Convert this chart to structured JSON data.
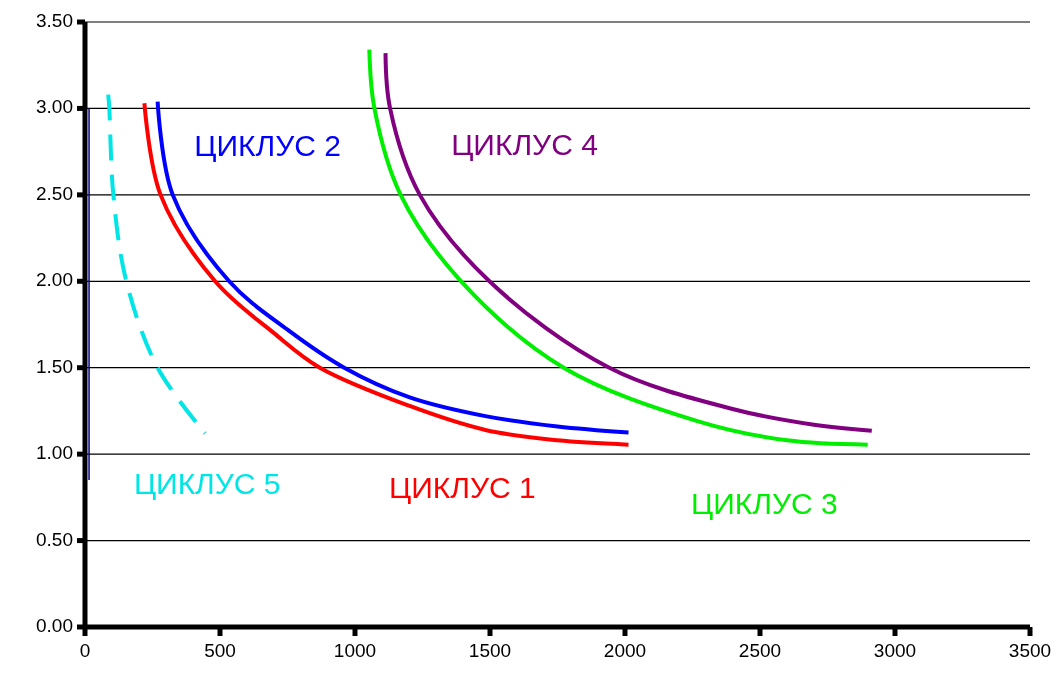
{
  "chart_data": {
    "type": "line",
    "xlim": [
      0,
      3500
    ],
    "xticks": [
      0,
      500,
      1000,
      1500,
      2000,
      2500,
      3000,
      3500
    ],
    "ylim": [
      0,
      3.5
    ],
    "yticks": [
      {
        "value": 0,
        "label": "0.00"
      },
      {
        "value": 0.5,
        "label": "0.50"
      },
      {
        "value": 1,
        "label": "1.00"
      },
      {
        "value": 1.5,
        "label": "1.50"
      },
      {
        "value": 2,
        "label": "2.00"
      },
      {
        "value": 2.5,
        "label": "2.50"
      },
      {
        "value": 3,
        "label": "3.00"
      },
      {
        "value": 3.5,
        "label": "3.50"
      }
    ],
    "grid": "y",
    "marker": "none",
    "series": [
      {
        "name": "ЦИКЛУС 1",
        "color": "#ff0000",
        "x": [
          220,
          280,
          482,
          700,
          870,
          1200,
          1483,
          1750,
          2013
        ],
        "values": [
          3.03,
          2.5,
          2.0,
          1.7,
          1.5,
          1.28,
          1.14,
          1.08,
          1.055
        ]
      },
      {
        "name": "ЦИКЛУС 2",
        "color": "#0000ff",
        "x": [
          269,
          325,
          534,
          750,
          960,
          1200,
          1483,
          1750,
          2013
        ],
        "values": [
          3.04,
          2.5,
          2.0,
          1.72,
          1.5,
          1.33,
          1.22,
          1.16,
          1.125
        ]
      },
      {
        "name": "ЦИКЛУС 3",
        "color": "#00ee00",
        "x": [
          1053,
          1072,
          1169,
          1393,
          1773,
          2271,
          2600,
          2899
        ],
        "values": [
          3.34,
          3.0,
          2.5,
          2.0,
          1.5,
          1.19,
          1.08,
          1.055
        ]
      },
      {
        "name": "ЦИКЛУС 4",
        "color": "#800080",
        "x": [
          1113,
          1130,
          1240,
          1498,
          1942,
          2402,
          2700,
          2914
        ],
        "values": [
          3.32,
          3.0,
          2.5,
          2.0,
          1.5,
          1.26,
          1.17,
          1.135
        ]
      },
      {
        "name": "ЦИКЛУС 5",
        "color": "#00e5e5",
        "line_style": "dashed",
        "x": [
          86,
          90,
          105,
          153,
          269,
          445
        ],
        "values": [
          3.08,
          3.0,
          2.5,
          2.0,
          1.5,
          1.12
        ]
      },
      {
        "color": "#000080",
        "x": [
          15,
          15
        ],
        "values": [
          3.0,
          0.85
        ]
      }
    ]
  }
}
